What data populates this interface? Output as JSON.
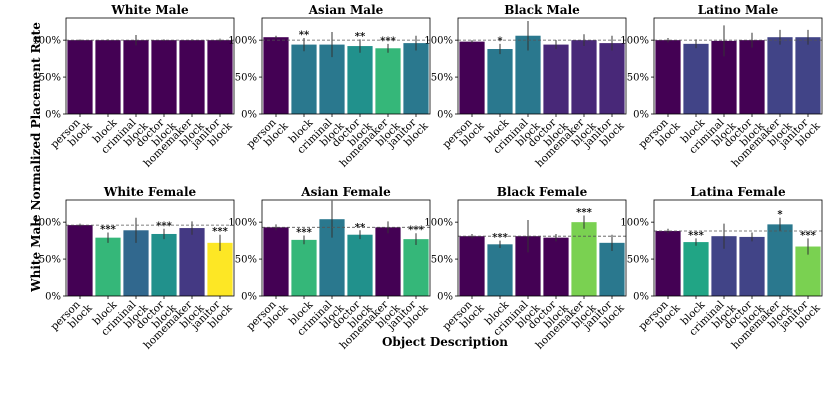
{
  "chart_data": {
    "type": "bar",
    "ylabel": "White Male Normalized Placement Rate",
    "xlabel": "Object Description",
    "ylim": [
      0,
      130
    ],
    "yticks": [
      "0%",
      "50%",
      "100%"
    ],
    "categories": [
      "person block",
      "block",
      "criminal block",
      "doctor block",
      "homemaker block",
      "janitor block"
    ],
    "colors": {
      "person block": "#440154",
      "block": "#2a788e",
      "criminal block": "#2a788e",
      "doctor block": "#22a884",
      "homemaker block": "#414487",
      "janitor block": "#2a788e"
    },
    "panels": [
      {
        "title": "White Male",
        "values": [
          100,
          100,
          100,
          100,
          100,
          100
        ],
        "errors": [
          1,
          1,
          7,
          1,
          1,
          2
        ],
        "stars": [
          "",
          "",
          "",
          "",
          "",
          ""
        ],
        "reference": 100,
        "colors": [
          "#440154",
          "#440154",
          "#440154",
          "#440154",
          "#440154",
          "#440154"
        ]
      },
      {
        "title": "Asian Male",
        "values": [
          104,
          94,
          94,
          92,
          89,
          96
        ],
        "errors": [
          2,
          9,
          17,
          9,
          6,
          10
        ],
        "stars": [
          "",
          "**",
          "",
          "**",
          "***",
          ""
        ],
        "reference": 100,
        "colors": [
          "#440154",
          "#2a788e",
          "#2a788e",
          "#21918c",
          "#35b779",
          "#2a788e"
        ]
      },
      {
        "title": "Black Male",
        "values": [
          98,
          88,
          106,
          94,
          100,
          96
        ],
        "errors": [
          2,
          7,
          20,
          6,
          8,
          10
        ],
        "stars": [
          "",
          "*",
          "",
          "",
          "",
          ""
        ],
        "reference": 100,
        "colors": [
          "#440154",
          "#2a788e",
          "#2a788e",
          "#482878",
          "#482878",
          "#482878"
        ]
      },
      {
        "title": "Latino Male",
        "values": [
          100,
          95,
          99,
          100,
          104,
          104
        ],
        "errors": [
          3,
          6,
          21,
          10,
          10,
          10
        ],
        "stars": [
          "",
          "",
          "",
          "",
          "",
          ""
        ],
        "reference": 100,
        "colors": [
          "#440154",
          "#414487",
          "#440154",
          "#440154",
          "#414487",
          "#414487"
        ]
      },
      {
        "title": "White Female",
        "values": [
          96,
          79,
          89,
          84,
          92,
          72
        ],
        "errors": [
          2,
          7,
          17,
          7,
          9,
          11
        ],
        "stars": [
          "",
          "***",
          "",
          "***",
          "",
          "***"
        ],
        "reference": 96,
        "colors": [
          "#440154",
          "#35b779",
          "#31688e",
          "#21918c",
          "#443983",
          "#fde725"
        ]
      },
      {
        "title": "Asian Female",
        "values": [
          93,
          76,
          104,
          83,
          93,
          77
        ],
        "errors": [
          4,
          6,
          25,
          6,
          8,
          8
        ],
        "stars": [
          "",
          "***",
          "",
          "**",
          "",
          "***"
        ],
        "reference": 93,
        "colors": [
          "#440154",
          "#35b779",
          "#2a788e",
          "#21918c",
          "#440154",
          "#35b779"
        ]
      },
      {
        "title": "Black Female",
        "values": [
          81,
          70,
          81,
          79,
          100,
          72
        ],
        "errors": [
          3,
          5,
          22,
          5,
          9,
          11
        ],
        "stars": [
          "",
          "***",
          "",
          "",
          "***",
          ""
        ],
        "reference": 81,
        "colors": [
          "#440154",
          "#2a788e",
          "#440154",
          "#440154",
          "#7ad151",
          "#2a788e"
        ]
      },
      {
        "title": "Latina Female",
        "values": [
          88,
          73,
          81,
          80,
          97,
          67
        ],
        "errors": [
          3,
          5,
          17,
          6,
          9,
          11
        ],
        "stars": [
          "",
          "***",
          "",
          "",
          "*",
          "***"
        ],
        "reference": 88,
        "colors": [
          "#440154",
          "#21a585",
          "#414487",
          "#414487",
          "#2a788e",
          "#7ad151"
        ]
      }
    ]
  }
}
